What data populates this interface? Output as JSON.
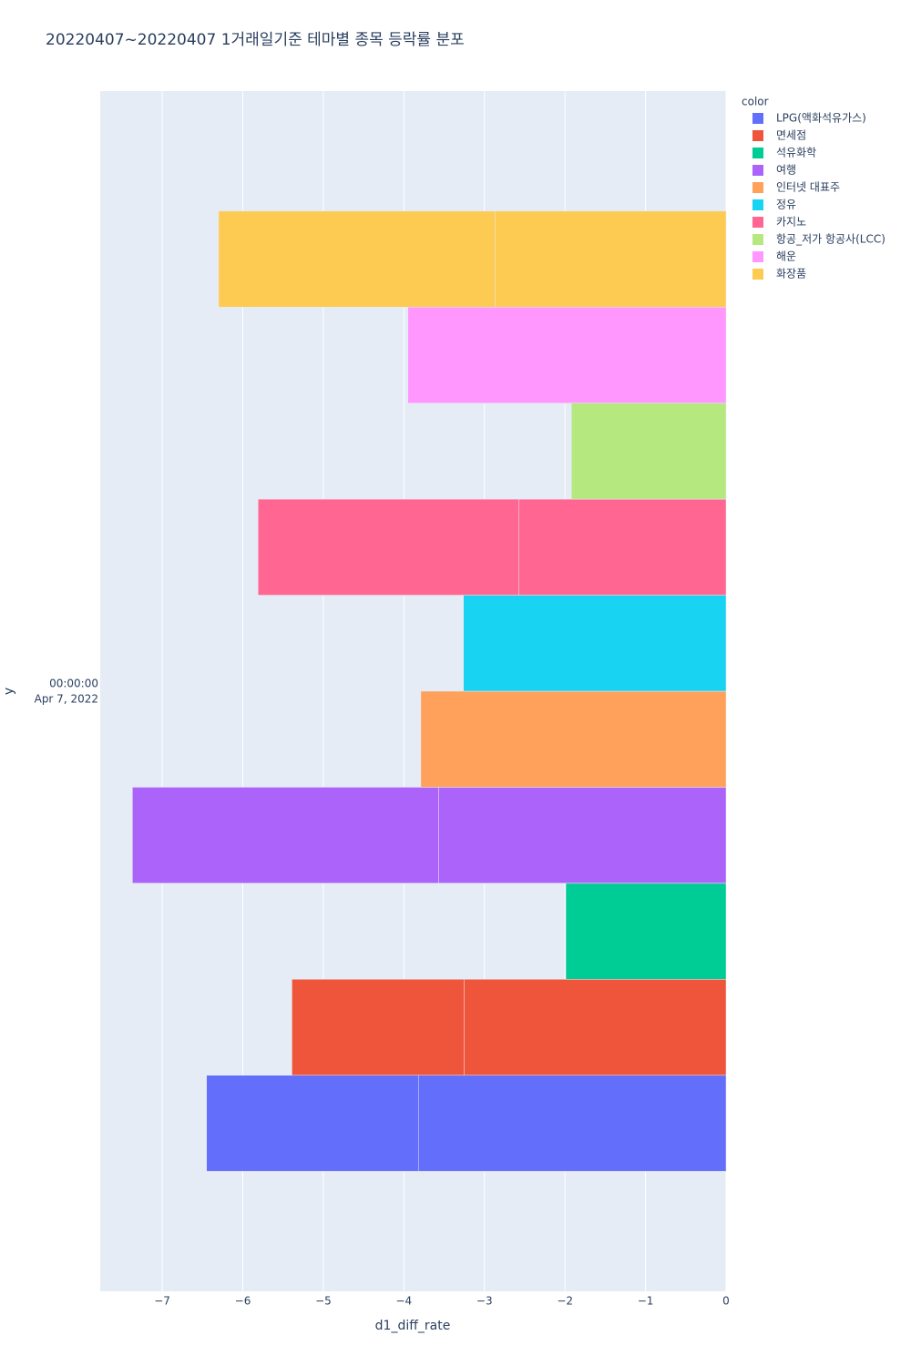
{
  "chart_data": {
    "type": "bar",
    "orientation": "horizontal",
    "title": "20220407~20220407 1거래일기준 테마별 종목 등락률 분포",
    "x_label": "d1_diff_rate",
    "y_label": "y",
    "y_category_label": {
      "time": "00:00:00",
      "date": "Apr 7, 2022"
    },
    "legend_title": "color",
    "legend_position": "right",
    "grid": true,
    "xlim": [
      -7.77,
      0
    ],
    "xticks": [
      {
        "value": -7,
        "label": "−7"
      },
      {
        "value": -6,
        "label": "−6"
      },
      {
        "value": -5,
        "label": "−5"
      },
      {
        "value": -4,
        "label": "−4"
      },
      {
        "value": -3,
        "label": "−3"
      },
      {
        "value": -2,
        "label": "−2"
      },
      {
        "value": -1,
        "label": "−1"
      },
      0
    ],
    "series": [
      {
        "name": "LPG(액화석유가스)",
        "color": "#636efa",
        "values": [
          -3.82,
          -2.63
        ]
      },
      {
        "name": "면세점",
        "color": "#ef553b",
        "values": [
          -3.25,
          -2.14
        ]
      },
      {
        "name": "석유화학",
        "color": "#00cc96",
        "values": [
          -1.99
        ]
      },
      {
        "name": "여행",
        "color": "#ab63fa",
        "values": [
          -3.57,
          -3.8
        ]
      },
      {
        "name": "인터넷 대표주",
        "color": "#ffa15a",
        "values": [
          -3.79
        ]
      },
      {
        "name": "정유",
        "color": "#19d3f3",
        "values": [
          -3.26
        ]
      },
      {
        "name": "카지노",
        "color": "#ff6692",
        "values": [
          -2.57,
          -3.24
        ]
      },
      {
        "name": "항공_저가 항공사(LCC)",
        "color": "#b6e880",
        "values": [
          -1.92
        ]
      },
      {
        "name": "해운",
        "color": "#ff97ff",
        "values": [
          -3.95
        ]
      },
      {
        "name": "화장품",
        "color": "#fecb52",
        "values": [
          -2.87,
          -3.43
        ]
      }
    ]
  }
}
